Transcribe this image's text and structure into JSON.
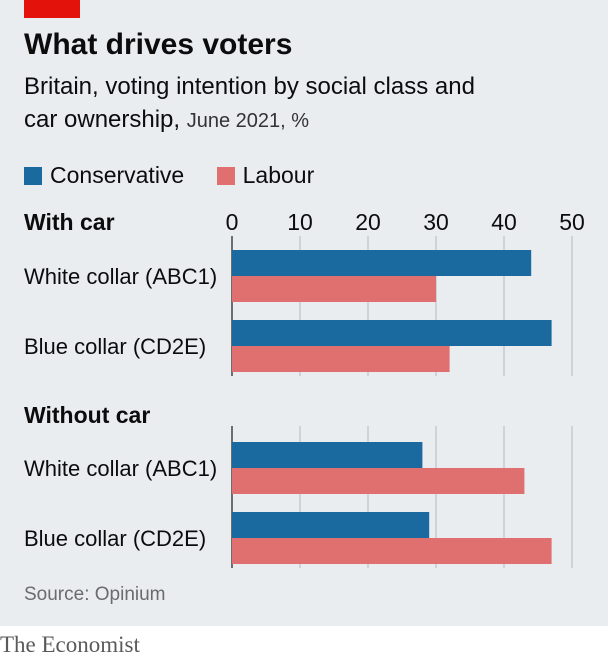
{
  "header": {
    "title": "What drives voters",
    "subtitle_main": "Britain, voting intention by social class and car ownership,",
    "subtitle_date": "June 2021, %"
  },
  "colors": {
    "conservative": "#1a6aa0",
    "labour": "#e06f6f",
    "accent": "#e3120b"
  },
  "legend": [
    {
      "label": "Conservative",
      "color": "#1a6aa0"
    },
    {
      "label": "Labour",
      "color": "#e06f6f"
    }
  ],
  "chart_data": {
    "type": "bar",
    "orientation": "horizontal",
    "xlim": [
      0,
      50
    ],
    "xticks": [
      0,
      10,
      20,
      30,
      40,
      50
    ],
    "xtick_labels": [
      "0",
      "10",
      "20",
      "30",
      "40",
      "50"
    ],
    "grid": true,
    "legend_position": "top-left",
    "groups": [
      {
        "name": "With car",
        "categories": [
          "White collar (ABC1)",
          "Blue collar (CD2E)"
        ],
        "series": [
          {
            "name": "Conservative",
            "values": [
              44,
              47
            ]
          },
          {
            "name": "Labour",
            "values": [
              30,
              32
            ]
          }
        ]
      },
      {
        "name": "Without car",
        "categories": [
          "White collar (ABC1)",
          "Blue collar (CD2E)"
        ],
        "series": [
          {
            "name": "Conservative",
            "values": [
              28,
              29
            ]
          },
          {
            "name": "Labour",
            "values": [
              43,
              47
            ]
          }
        ]
      }
    ]
  },
  "footer": {
    "source": "Source: Opinium",
    "brand": "The Economist"
  }
}
